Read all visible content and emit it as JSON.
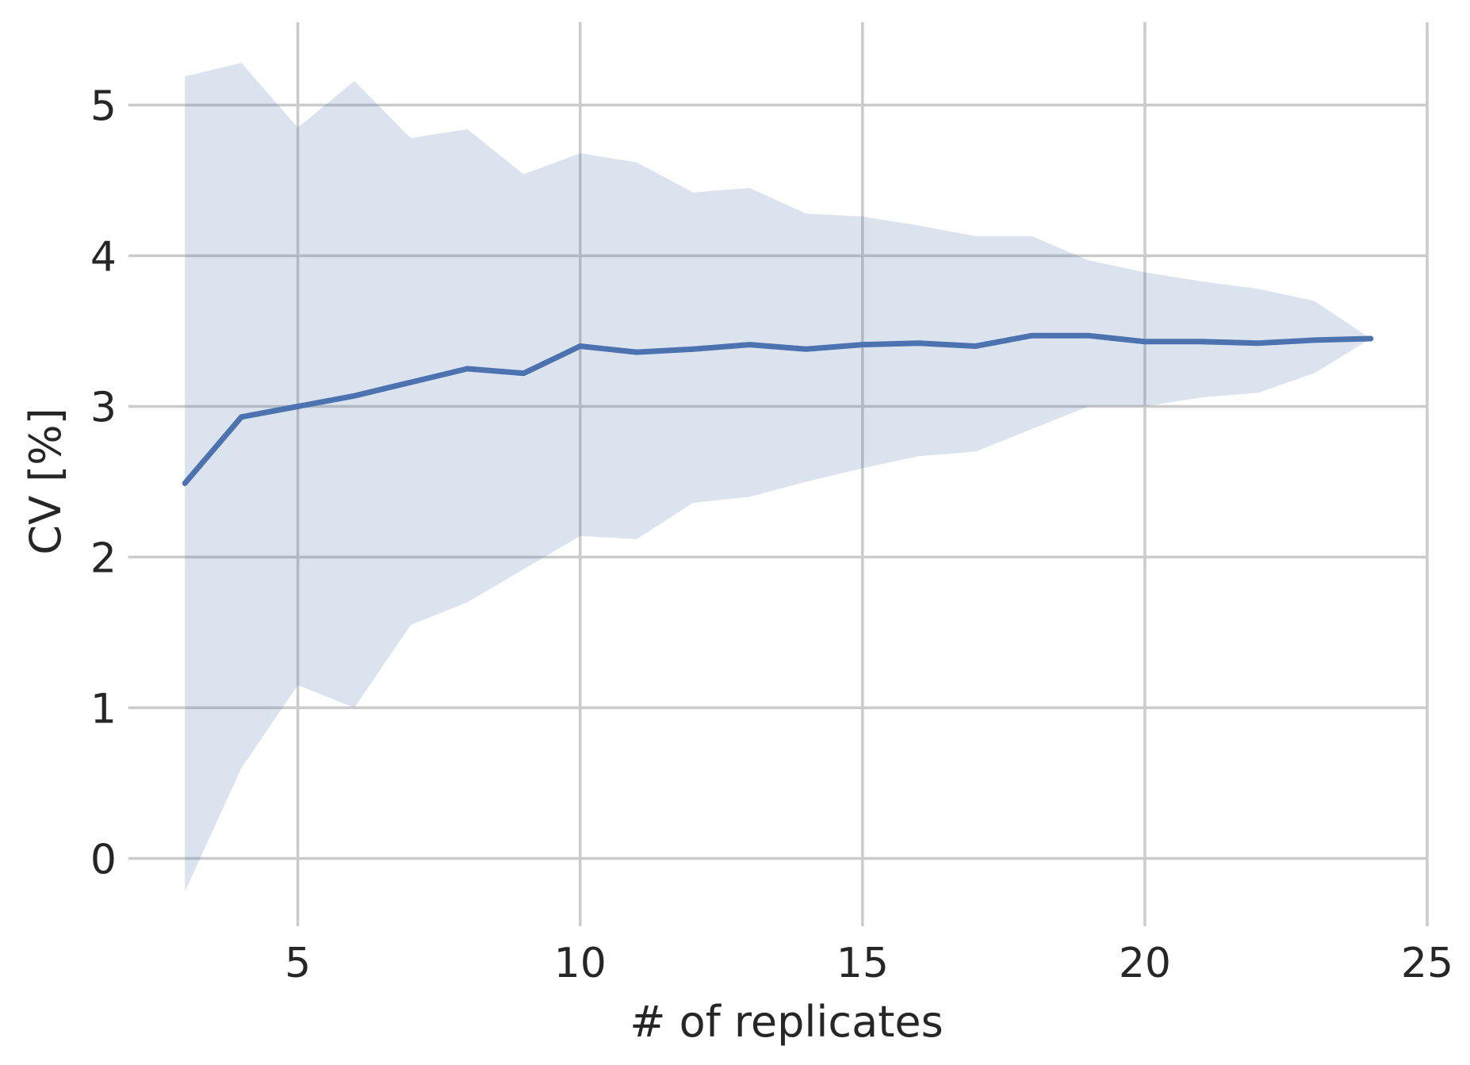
{
  "chart_data": {
    "type": "line",
    "title": "",
    "xlabel": "# of replicates",
    "ylabel": "CV [%]",
    "xlim": [
      2.0,
      25.0
    ],
    "ylim": [
      -0.45,
      5.55
    ],
    "xticks": [
      5,
      10,
      15,
      20,
      25
    ],
    "yticks": [
      0,
      1,
      2,
      3,
      4,
      5
    ],
    "grid": true,
    "legend": "none",
    "colors": {
      "line": "#4c72b0",
      "band": "#4c72b0",
      "grid": "#cbcbcb",
      "text": "#262626"
    },
    "x": [
      3,
      4,
      5,
      6,
      7,
      8,
      9,
      10,
      11,
      12,
      13,
      14,
      15,
      16,
      17,
      18,
      19,
      20,
      21,
      22,
      23,
      24
    ],
    "series": [
      {
        "values": [
          2.49,
          2.93,
          3.0,
          3.07,
          3.16,
          3.25,
          3.22,
          3.4,
          3.36,
          3.38,
          3.41,
          3.38,
          3.41,
          3.42,
          3.4,
          3.47,
          3.47,
          3.43,
          3.43,
          3.42,
          3.44,
          3.45
        ],
        "lower": [
          -0.22,
          0.6,
          1.15,
          1.0,
          1.55,
          1.7,
          1.92,
          2.14,
          2.12,
          2.36,
          2.4,
          2.5,
          2.59,
          2.67,
          2.7,
          2.85,
          3.0,
          3.0,
          3.06,
          3.09,
          3.22,
          3.45
        ],
        "upper": [
          5.19,
          5.28,
          4.85,
          5.16,
          4.78,
          4.84,
          4.54,
          4.68,
          4.62,
          4.42,
          4.45,
          4.28,
          4.26,
          4.2,
          4.13,
          4.13,
          3.97,
          3.89,
          3.83,
          3.78,
          3.7,
          3.45
        ]
      }
    ]
  }
}
